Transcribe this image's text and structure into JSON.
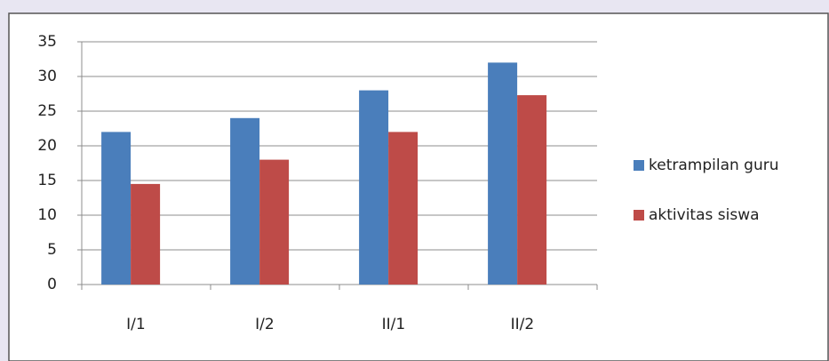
{
  "chart_data": {
    "type": "bar",
    "categories": [
      "I/1",
      "I/2",
      "II/1",
      "II/2"
    ],
    "series": [
      {
        "name": "ketrampilan guru",
        "color": "#4a7ebb",
        "values": [
          22,
          24,
          28,
          32
        ]
      },
      {
        "name": "aktivitas siswa",
        "color": "#be4b48",
        "values": [
          14.5,
          18,
          22,
          27.3
        ]
      }
    ],
    "ylim": [
      0,
      35
    ],
    "yticks": [
      0,
      5,
      10,
      15,
      20,
      25,
      30,
      35
    ],
    "grid": true,
    "legend": "right"
  }
}
